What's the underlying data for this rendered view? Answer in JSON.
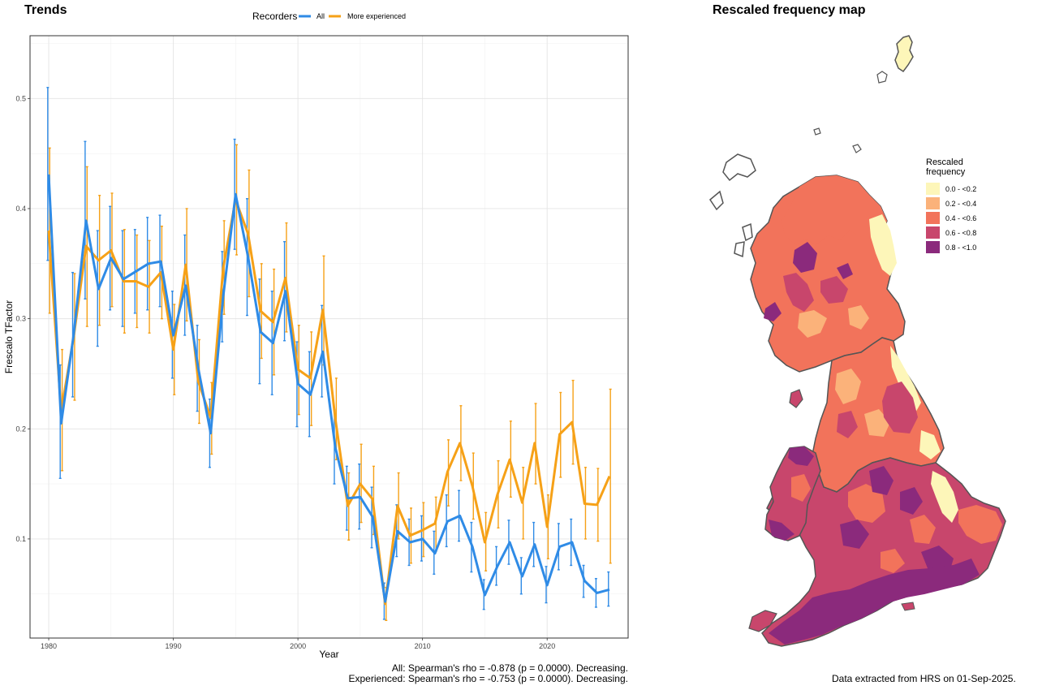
{
  "trends": {
    "title": "Trends",
    "caption_all": "All: Spearman's rho = -0.878 (p = 0.0000). Decreasing.",
    "caption_experienced": "Experienced: Spearman's rho = -0.753 (p = 0.0000). Decreasing."
  },
  "map": {
    "title": "Rescaled frequency map",
    "caption": "Data extracted from HRS on 01-Sep-2025.",
    "legend_title_line1": "Rescaled",
    "legend_title_line2": "frequency",
    "legend": [
      {
        "label": "0.0 - <0.2",
        "color": "#fdf6b9"
      },
      {
        "label": "0.2 - <0.4",
        "color": "#fbb27a"
      },
      {
        "label": "0.4 - <0.6",
        "color": "#f2735b"
      },
      {
        "label": "0.6 - <0.8",
        "color": "#c8466c"
      },
      {
        "label": "0.8 - <1.0",
        "color": "#8b2a7c"
      }
    ]
  },
  "chart_data": {
    "type": "line",
    "title": "Trends",
    "xlabel": "Year",
    "ylabel": "Frescalo TFactor",
    "xlim": [
      1978.5,
      2026.5
    ],
    "ylim": [
      0.01,
      0.557
    ],
    "xticks": [
      1980,
      1990,
      2000,
      2010,
      2020
    ],
    "yticks": [
      0.1,
      0.2,
      0.3,
      0.4,
      0.5
    ],
    "ytick_labels": [
      "0.1",
      "0.2",
      "0.3",
      "0.4",
      "0.5"
    ],
    "grid": true,
    "legend_title": "Recorders",
    "legend_position": "top",
    "x": [
      1980,
      1981,
      1982,
      1983,
      1984,
      1985,
      1986,
      1987,
      1988,
      1989,
      1990,
      1991,
      1992,
      1993,
      1994,
      1995,
      1996,
      1997,
      1998,
      1999,
      2000,
      2001,
      2002,
      2003,
      2004,
      2005,
      2006,
      2007,
      2008,
      2009,
      2010,
      2011,
      2012,
      2013,
      2014,
      2015,
      2016,
      2017,
      2018,
      2019,
      2020,
      2021,
      2022,
      2023,
      2024,
      2025
    ],
    "series": [
      {
        "name": "All",
        "color": "#2f8be6",
        "values": [
          0.431,
          0.205,
          0.285,
          0.389,
          0.327,
          0.355,
          0.336,
          0.343,
          0.35,
          0.352,
          0.285,
          0.33,
          0.255,
          0.196,
          0.32,
          0.413,
          0.356,
          0.288,
          0.278,
          0.325,
          0.241,
          0.231,
          0.27,
          0.183,
          0.137,
          0.138,
          0.12,
          0.043,
          0.107,
          0.097,
          0.1,
          0.087,
          0.116,
          0.121,
          0.093,
          0.049,
          0.075,
          0.097,
          0.066,
          0.095,
          0.058,
          0.093,
          0.097,
          0.062,
          0.051,
          0.054
        ],
        "lower": [
          0.353,
          0.155,
          0.229,
          0.318,
          0.275,
          0.308,
          0.293,
          0.305,
          0.308,
          0.311,
          0.246,
          0.285,
          0.216,
          0.165,
          0.279,
          0.363,
          0.303,
          0.241,
          0.231,
          0.28,
          0.202,
          0.193,
          0.229,
          0.15,
          0.108,
          0.109,
          0.092,
          0.027,
          0.084,
          0.076,
          0.08,
          0.068,
          0.093,
          0.098,
          0.07,
          0.036,
          0.058,
          0.077,
          0.05,
          0.075,
          0.042,
          0.072,
          0.076,
          0.047,
          0.038,
          0.039
        ],
        "upper": [
          0.51,
          0.258,
          0.342,
          0.461,
          0.38,
          0.402,
          0.38,
          0.381,
          0.392,
          0.394,
          0.325,
          0.376,
          0.294,
          0.227,
          0.361,
          0.463,
          0.409,
          0.336,
          0.325,
          0.37,
          0.279,
          0.27,
          0.312,
          0.217,
          0.166,
          0.168,
          0.147,
          0.06,
          0.131,
          0.118,
          0.121,
          0.107,
          0.14,
          0.144,
          0.115,
          0.063,
          0.093,
          0.117,
          0.083,
          0.115,
          0.075,
          0.114,
          0.118,
          0.076,
          0.064,
          0.07
        ]
      },
      {
        "name": "More experienced",
        "color": "#f6a117",
        "values": [
          0.38,
          0.216,
          0.283,
          0.366,
          0.353,
          0.362,
          0.334,
          0.334,
          0.329,
          0.342,
          0.272,
          0.349,
          0.243,
          0.21,
          0.346,
          0.408,
          0.377,
          0.307,
          0.297,
          0.337,
          0.254,
          0.246,
          0.308,
          0.209,
          0.13,
          0.15,
          0.136,
          0.041,
          0.13,
          0.103,
          0.108,
          0.114,
          0.161,
          0.187,
          0.148,
          0.097,
          0.14,
          0.172,
          0.133,
          0.187,
          0.111,
          0.195,
          0.206,
          0.132,
          0.131,
          0.157
        ],
        "lower": [
          0.305,
          0.162,
          0.226,
          0.293,
          0.294,
          0.311,
          0.287,
          0.292,
          0.287,
          0.3,
          0.231,
          0.298,
          0.205,
          0.177,
          0.304,
          0.358,
          0.32,
          0.264,
          0.249,
          0.288,
          0.213,
          0.203,
          0.258,
          0.172,
          0.099,
          0.115,
          0.104,
          0.026,
          0.1,
          0.078,
          0.084,
          0.089,
          0.13,
          0.153,
          0.118,
          0.071,
          0.11,
          0.138,
          0.1,
          0.15,
          0.082,
          0.156,
          0.168,
          0.1,
          0.098,
          0.078
        ],
        "upper": [
          0.455,
          0.272,
          0.341,
          0.438,
          0.412,
          0.414,
          0.381,
          0.376,
          0.371,
          0.384,
          0.313,
          0.4,
          0.281,
          0.242,
          0.389,
          0.458,
          0.435,
          0.35,
          0.345,
          0.387,
          0.294,
          0.288,
          0.357,
          0.246,
          0.16,
          0.186,
          0.166,
          0.056,
          0.16,
          0.128,
          0.133,
          0.138,
          0.19,
          0.221,
          0.178,
          0.124,
          0.171,
          0.207,
          0.165,
          0.223,
          0.14,
          0.233,
          0.244,
          0.165,
          0.164,
          0.236
        ]
      }
    ]
  }
}
